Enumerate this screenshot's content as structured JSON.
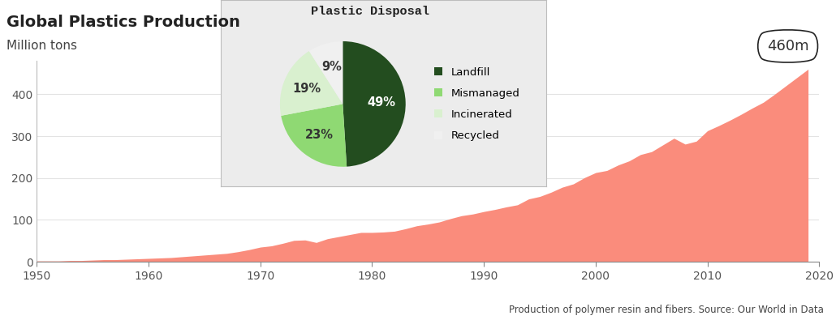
{
  "chart_data": [
    {
      "type": "area",
      "title": "Global Plastics Production",
      "subtitle": "Million tons",
      "footnote": "Production of polymer resin and fibers. Source: Our World in Data",
      "x": [
        1950,
        1951,
        1952,
        1953,
        1954,
        1955,
        1956,
        1957,
        1958,
        1959,
        1960,
        1961,
        1962,
        1963,
        1964,
        1965,
        1966,
        1967,
        1968,
        1969,
        1970,
        1971,
        1972,
        1973,
        1974,
        1975,
        1976,
        1977,
        1978,
        1979,
        1980,
        1981,
        1982,
        1983,
        1984,
        1985,
        1986,
        1987,
        1988,
        1989,
        1990,
        1991,
        1992,
        1993,
        1994,
        1995,
        1996,
        1997,
        1998,
        1999,
        2000,
        2001,
        2002,
        2003,
        2004,
        2005,
        2006,
        2007,
        2008,
        2009,
        2010,
        2011,
        2012,
        2013,
        2014,
        2015,
        2016,
        2017,
        2018,
        2019
      ],
      "values": [
        2,
        2,
        2,
        3,
        3,
        4,
        5,
        5,
        6,
        7,
        8,
        9,
        10,
        12,
        14,
        16,
        18,
        20,
        24,
        29,
        35,
        38,
        44,
        51,
        52,
        46,
        55,
        60,
        65,
        70,
        70,
        71,
        73,
        79,
        86,
        90,
        95,
        103,
        110,
        114,
        120,
        125,
        131,
        136,
        150,
        156,
        166,
        178,
        186,
        201,
        213,
        218,
        231,
        241,
        256,
        263,
        279,
        295,
        281,
        288,
        313,
        325,
        338,
        352,
        367,
        381,
        400,
        420,
        440,
        460
      ],
      "color": "#fa8c7c",
      "xlim": [
        1950,
        2020
      ],
      "xticks": [
        1950,
        1960,
        1970,
        1980,
        1990,
        2000,
        2010,
        2020
      ],
      "ylim": [
        0,
        480
      ],
      "yticks": [
        0,
        100,
        200,
        300,
        400
      ],
      "grid": true,
      "annotations": [
        {
          "text": "460m",
          "x": 2019,
          "y": 460
        }
      ]
    },
    {
      "type": "pie",
      "title": "Plastic Disposal",
      "categories": [
        "Landfill",
        "Mismanaged",
        "Incinerated",
        "Recycled"
      ],
      "values": [
        49,
        23,
        19,
        9
      ],
      "value_labels": [
        "49%",
        "23%",
        "19%",
        "9%"
      ],
      "colors": [
        "#234d1f",
        "#8fd973",
        "#d9f0cf",
        "#f0f0f0"
      ],
      "data_labels": true,
      "legend": "right"
    }
  ]
}
